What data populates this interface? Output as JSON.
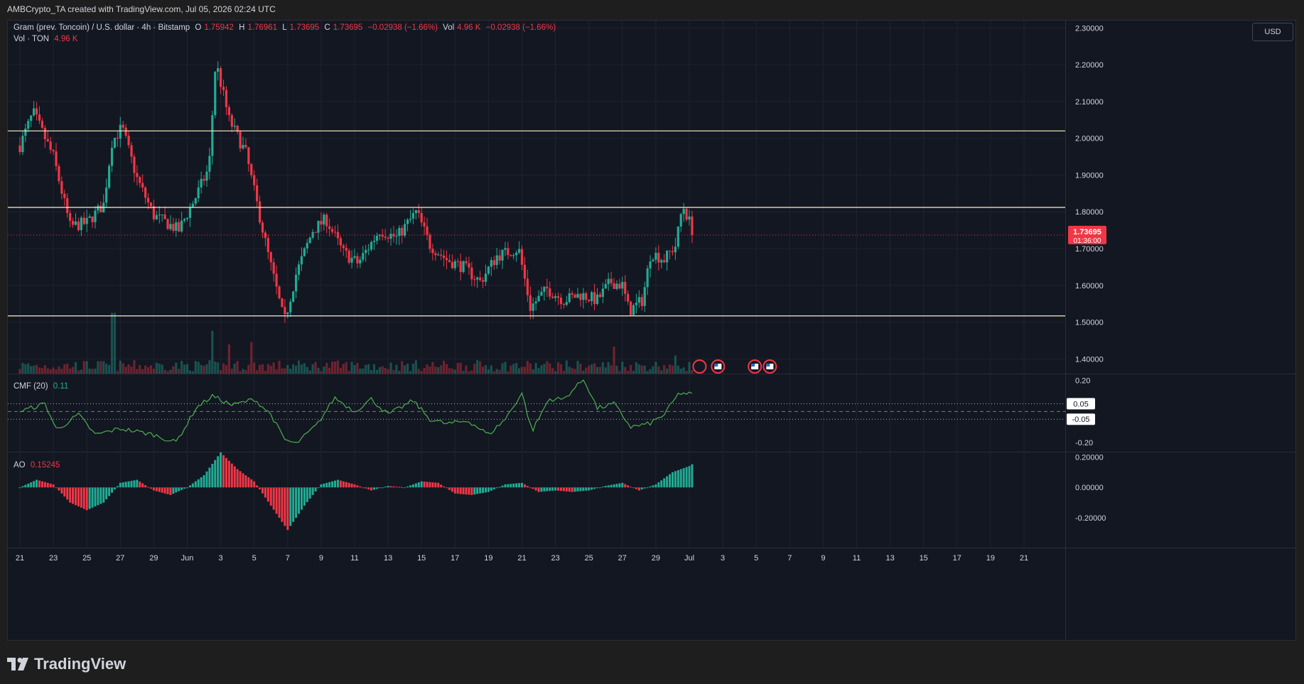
{
  "header": {
    "text": "AMBCrypto_TA created with TradingView.com, Jul 05, 2026 02:24 UTC"
  },
  "legend": {
    "symbol": "Gram (prev. Toncoin) / U.S. dollar · 4h · Bitstamp",
    "o_label": "O",
    "o_value": "1.75942",
    "h_label": "H",
    "h_value": "1.76961",
    "l_label": "L",
    "l_value": "1.73695",
    "c_label": "C",
    "c_value": "1.73695",
    "change": "−0.02938 (−1.66%)",
    "vol_label": "Vol",
    "vol_value": "4.96 K",
    "vol_change": "−0.02938 (−1.66%)",
    "vol_series_label": "Vol · TON",
    "vol_series_value": "4.96 K"
  },
  "cmf_legend": {
    "label": "CMF (20)",
    "value": "0.11"
  },
  "ao_legend": {
    "label": "AO",
    "value": "0.15245"
  },
  "currency_button": "USD",
  "price_tag": {
    "value": "1.73695",
    "countdown": "01:36:00"
  },
  "footer": {
    "brand": "TradingView"
  },
  "colors": {
    "background": "#131722",
    "up": "#22ab94",
    "down": "#f23645",
    "up_line": "#089981",
    "cmf_line": "#4caf50",
    "hline": "#fff2c4"
  },
  "chart_data": [
    {
      "type": "candlestick",
      "title": "Gram (prev. Toncoin) / U.S. dollar · 4h · Bitstamp",
      "ylim": [
        1.36,
        2.32
      ],
      "y_ticks": [
        "2.30000",
        "2.20000",
        "2.10000",
        "2.00000",
        "1.90000",
        "1.80000",
        "1.70000",
        "1.60000",
        "1.50000",
        "1.40000"
      ],
      "x_ticks": [
        "21",
        "23",
        "25",
        "27",
        "29",
        "Jun",
        "3",
        "5",
        "7",
        "9",
        "11",
        "13",
        "15",
        "17",
        "19",
        "21",
        "23",
        "25",
        "27",
        "29",
        "Jul",
        "3",
        "5",
        "7",
        "9",
        "11",
        "13",
        "15",
        "17",
        "19",
        "21"
      ],
      "horizontal_levels": [
        2.02,
        1.812,
        1.517
      ],
      "last_price": 1.73695,
      "close_path": [
        {
          "day": 0,
          "close": 1.98
        },
        {
          "day": 0.8,
          "close": 2.07
        },
        {
          "day": 2,
          "close": 1.95
        },
        {
          "day": 3,
          "close": 1.76
        },
        {
          "day": 4,
          "close": 1.77
        },
        {
          "day": 5,
          "close": 1.82
        },
        {
          "day": 5.5,
          "close": 1.99
        },
        {
          "day": 6.1,
          "close": 2.03
        },
        {
          "day": 7,
          "close": 1.89
        },
        {
          "day": 8,
          "close": 1.79
        },
        {
          "day": 9.5,
          "close": 1.75
        },
        {
          "day": 10.5,
          "close": 1.84
        },
        {
          "day": 11.3,
          "close": 1.92
        },
        {
          "day": 11.7,
          "close": 2.21
        },
        {
          "day": 12.5,
          "close": 2.05
        },
        {
          "day": 13.5,
          "close": 1.96
        },
        {
          "day": 14.8,
          "close": 1.69
        },
        {
          "day": 15.8,
          "close": 1.5
        },
        {
          "day": 16.5,
          "close": 1.63
        },
        {
          "day": 17.5,
          "close": 1.75
        },
        {
          "day": 18.3,
          "close": 1.78
        },
        {
          "day": 19.3,
          "close": 1.69
        },
        {
          "day": 20.2,
          "close": 1.66
        },
        {
          "day": 21.5,
          "close": 1.75
        },
        {
          "day": 22.5,
          "close": 1.73
        },
        {
          "day": 23.7,
          "close": 1.8
        },
        {
          "day": 24.5,
          "close": 1.71
        },
        {
          "day": 25.5,
          "close": 1.67
        },
        {
          "day": 26.5,
          "close": 1.65
        },
        {
          "day": 27.5,
          "close": 1.61
        },
        {
          "day": 28.5,
          "close": 1.68
        },
        {
          "day": 29.8,
          "close": 1.7
        },
        {
          "day": 30.5,
          "close": 1.54
        },
        {
          "day": 31.5,
          "close": 1.59
        },
        {
          "day": 32.5,
          "close": 1.56
        },
        {
          "day": 33.5,
          "close": 1.575
        },
        {
          "day": 34.5,
          "close": 1.56
        },
        {
          "day": 35.3,
          "close": 1.61
        },
        {
          "day": 36,
          "close": 1.6
        },
        {
          "day": 36.4,
          "close": 1.53
        },
        {
          "day": 37.2,
          "close": 1.56
        },
        {
          "day": 37.7,
          "close": 1.69
        },
        {
          "day": 38.5,
          "close": 1.67
        },
        {
          "day": 39.2,
          "close": 1.71
        },
        {
          "day": 39.6,
          "close": 1.82
        },
        {
          "day": 40.3,
          "close": 1.737
        }
      ],
      "volume_spikes_k": [
        {
          "day": 5.6,
          "value": 27
        },
        {
          "day": 11.5,
          "value": 19
        },
        {
          "day": 12.5,
          "value": 13
        },
        {
          "day": 13.8,
          "value": 14
        },
        {
          "day": 35.5,
          "value": 12
        },
        {
          "day": 39.1,
          "value": 8
        }
      ]
    },
    {
      "type": "line",
      "title": "CMF (20)",
      "ylim": [
        -0.26,
        0.24
      ],
      "y_ticks": [
        "0.20",
        "-0.20"
      ],
      "levels": [
        "0.05",
        "-0.05"
      ],
      "last_value": 0.11,
      "points": [
        {
          "day": 0,
          "value": 0.0
        },
        {
          "day": 1.5,
          "value": 0.05
        },
        {
          "day": 2.2,
          "value": -0.12
        },
        {
          "day": 3.5,
          "value": -0.02
        },
        {
          "day": 4.5,
          "value": -0.15
        },
        {
          "day": 6,
          "value": -0.11
        },
        {
          "day": 8,
          "value": -0.15
        },
        {
          "day": 9.3,
          "value": -0.2
        },
        {
          "day": 10,
          "value": -0.08
        },
        {
          "day": 10.5,
          "value": 0.02
        },
        {
          "day": 11.5,
          "value": 0.1
        },
        {
          "day": 12.7,
          "value": 0.04
        },
        {
          "day": 14,
          "value": 0.08
        },
        {
          "day": 15,
          "value": -0.02
        },
        {
          "day": 15.8,
          "value": -0.18
        },
        {
          "day": 16.5,
          "value": -0.21
        },
        {
          "day": 17.8,
          "value": -0.08
        },
        {
          "day": 18.8,
          "value": 0.09
        },
        {
          "day": 20,
          "value": 0.0
        },
        {
          "day": 21,
          "value": 0.08
        },
        {
          "day": 22,
          "value": -0.02
        },
        {
          "day": 23.5,
          "value": 0.07
        },
        {
          "day": 24.5,
          "value": -0.05
        },
        {
          "day": 25.5,
          "value": -0.08
        },
        {
          "day": 26.8,
          "value": -0.06
        },
        {
          "day": 28,
          "value": -0.15
        },
        {
          "day": 29,
          "value": -0.05
        },
        {
          "day": 30,
          "value": 0.12
        },
        {
          "day": 30.6,
          "value": -0.13
        },
        {
          "day": 31.6,
          "value": 0.08
        },
        {
          "day": 32.5,
          "value": 0.08
        },
        {
          "day": 33.7,
          "value": 0.21
        },
        {
          "day": 34.5,
          "value": 0.02
        },
        {
          "day": 35.5,
          "value": 0.05
        },
        {
          "day": 36.5,
          "value": -0.1
        },
        {
          "day": 37.6,
          "value": -0.08
        },
        {
          "day": 38.5,
          "value": -0.02
        },
        {
          "day": 39.4,
          "value": 0.12
        },
        {
          "day": 40.3,
          "value": 0.11
        }
      ]
    },
    {
      "type": "histogram",
      "title": "AO",
      "ylim": [
        -0.27,
        0.23
      ],
      "y_ticks": [
        "0.20000",
        "0.00000",
        "-0.20000"
      ],
      "last_value": 0.15245,
      "points": [
        {
          "day": 0,
          "value": 0.0
        },
        {
          "day": 1,
          "value": 0.05
        },
        {
          "day": 2,
          "value": 0.02
        },
        {
          "day": 3,
          "value": -0.1
        },
        {
          "day": 4,
          "value": -0.15
        },
        {
          "day": 5,
          "value": -0.1
        },
        {
          "day": 6,
          "value": 0.03
        },
        {
          "day": 7,
          "value": 0.05
        },
        {
          "day": 8,
          "value": -0.02
        },
        {
          "day": 9,
          "value": -0.05
        },
        {
          "day": 10,
          "value": 0.0
        },
        {
          "day": 11,
          "value": 0.08
        },
        {
          "day": 12,
          "value": 0.23
        },
        {
          "day": 13,
          "value": 0.12
        },
        {
          "day": 14,
          "value": 0.04
        },
        {
          "day": 15,
          "value": -0.12
        },
        {
          "day": 16,
          "value": -0.28
        },
        {
          "day": 17,
          "value": -0.12
        },
        {
          "day": 18,
          "value": 0.02
        },
        {
          "day": 19,
          "value": 0.05
        },
        {
          "day": 20,
          "value": 0.02
        },
        {
          "day": 21,
          "value": -0.02
        },
        {
          "day": 22,
          "value": 0.01
        },
        {
          "day": 23,
          "value": 0.0
        },
        {
          "day": 24,
          "value": 0.04
        },
        {
          "day": 25,
          "value": 0.03
        },
        {
          "day": 26,
          "value": -0.04
        },
        {
          "day": 27,
          "value": -0.05
        },
        {
          "day": 28,
          "value": -0.03
        },
        {
          "day": 29,
          "value": 0.02
        },
        {
          "day": 30,
          "value": 0.03
        },
        {
          "day": 31,
          "value": -0.03
        },
        {
          "day": 32,
          "value": -0.02
        },
        {
          "day": 33,
          "value": -0.03
        },
        {
          "day": 34,
          "value": -0.02
        },
        {
          "day": 35,
          "value": 0.01
        },
        {
          "day": 36,
          "value": 0.03
        },
        {
          "day": 37,
          "value": -0.02
        },
        {
          "day": 38,
          "value": 0.02
        },
        {
          "day": 39,
          "value": 0.1
        },
        {
          "day": 40.3,
          "value": 0.15245
        }
      ]
    }
  ]
}
